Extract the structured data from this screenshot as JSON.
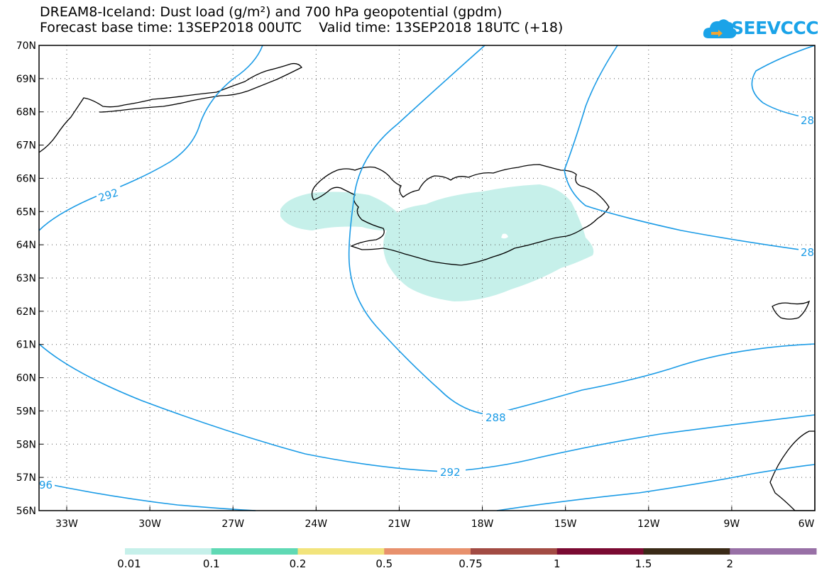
{
  "title_line1": "DREAM8-Iceland: Dust load (g/m²) and 700 hPa geopotential (gpdm)",
  "title_line2": "Forecast base time: 13SEP2018 00UTC    Valid time: 13SEP2018 18UTC (+18)",
  "logo": {
    "name": "SEEVCCC",
    "text": "SEEVCCC",
    "color": "#1aa3e8"
  },
  "lat_labels": [
    "70N",
    "69N",
    "68N",
    "67N",
    "66N",
    "65N",
    "64N",
    "63N",
    "62N",
    "61N",
    "60N",
    "59N",
    "58N",
    "57N",
    "56N"
  ],
  "lon_labels": [
    "33W",
    "30W",
    "27W",
    "24W",
    "21W",
    "18W",
    "15W",
    "12W",
    "9W",
    "6W"
  ],
  "contour_labels": [
    {
      "text": "292"
    },
    {
      "text": "288"
    },
    {
      "text": "292"
    },
    {
      "text": "96"
    },
    {
      "text": "28"
    },
    {
      "text": "28"
    }
  ],
  "colorbar": {
    "labels": [
      "0.01",
      "0.1",
      "0.2",
      "0.5",
      "0.75",
      "1",
      "1.5",
      "2"
    ],
    "colors": [
      "#c6f0ea",
      "#5fd9b4",
      "#f2e47c",
      "#e8916d",
      "#a24b43",
      "#7a0a32",
      "#3a2a17",
      "#9870a6"
    ]
  },
  "colors": {
    "contour": "#1a9be6",
    "dust_low": "#c6f0ea",
    "coast": "#000000"
  }
}
